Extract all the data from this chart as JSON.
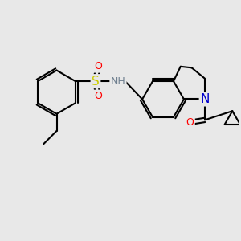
{
  "background_color": "#e8e8e8",
  "bond_color": "#000000",
  "bond_width": 1.5,
  "atom_colors": {
    "N": "#0000cd",
    "O": "#ff0000",
    "S": "#cccc00",
    "H": "#708090",
    "C": "#000000"
  },
  "font_size": 9,
  "figsize": [
    3.0,
    3.0
  ],
  "dpi": 100
}
